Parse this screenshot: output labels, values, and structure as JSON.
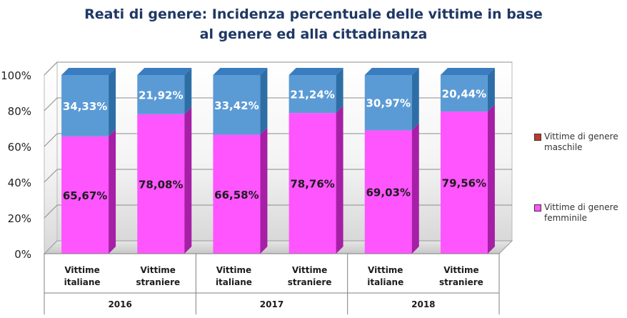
{
  "chart_data": {
    "type": "bar",
    "stacked": true,
    "percent": true,
    "title": "Reati di genere: Incidenza percentuale delle vittime in base al genere ed alla cittadinanza",
    "title_lines": [
      "Reati di genere: Incidenza percentuale delle vittime in base",
      "al genere ed alla cittadinanza"
    ],
    "categories": [
      "Vittime italiane",
      "Vittime straniere",
      "Vittime italiane",
      "Vittime straniere",
      "Vittime italiane",
      "Vittime straniere"
    ],
    "category_lines": [
      [
        "Vittime",
        "italiane"
      ],
      [
        "Vittime",
        "straniere"
      ],
      [
        "Vittime",
        "italiane"
      ],
      [
        "Vittime",
        "straniere"
      ],
      [
        "Vittime",
        "italiane"
      ],
      [
        "Vittime",
        "straniere"
      ]
    ],
    "groups": [
      "2016",
      "2017",
      "2018"
    ],
    "series": [
      {
        "name": "Vittime  di genere femminile",
        "values": [
          65.67,
          78.08,
          66.58,
          78.76,
          69.03,
          79.56
        ],
        "labels": [
          "65,67%",
          "78,08%",
          "66,58%",
          "78,76%",
          "69,03%",
          "79,56%"
        ],
        "color": "#ff55ff"
      },
      {
        "name": "Vittime  di genere maschile",
        "values": [
          34.33,
          21.92,
          33.42,
          21.24,
          30.97,
          20.44
        ],
        "labels": [
          "34,33%",
          "21,92%",
          "33,42%",
          "21,24%",
          "30,97%",
          "20,44%"
        ],
        "color": "#5b9bd5"
      }
    ],
    "yticks": [
      "0%",
      "20%",
      "40%",
      "60%",
      "80%",
      "100%"
    ],
    "ylim": [
      0,
      100
    ],
    "grid": true,
    "legend_position": "right"
  }
}
